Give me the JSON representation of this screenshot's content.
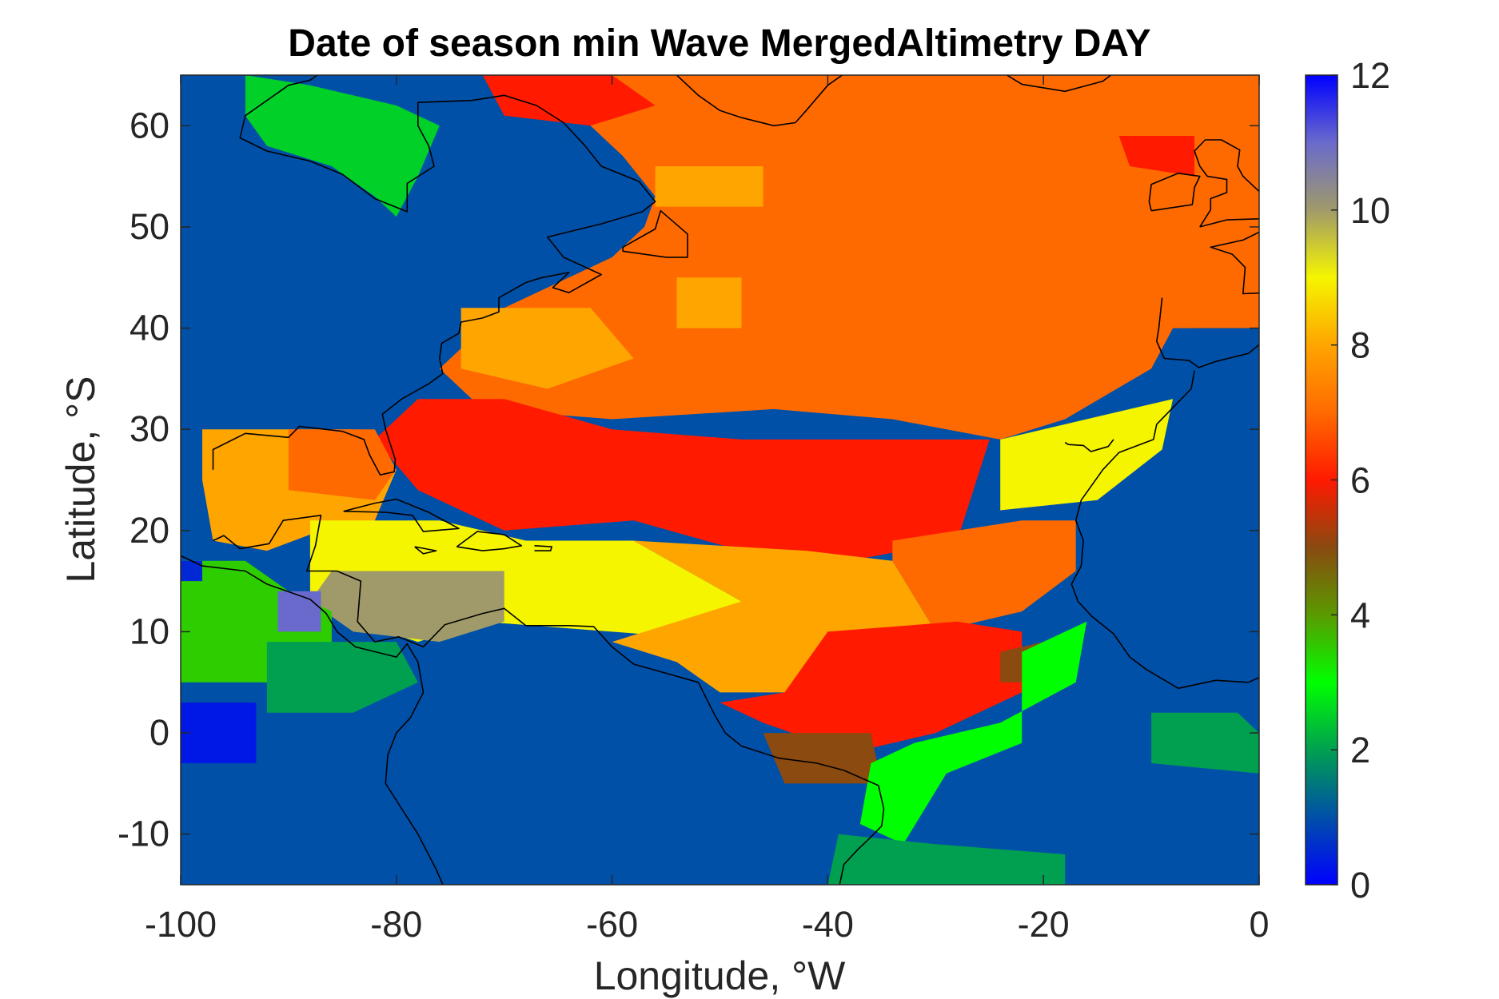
{
  "chart_data": {
    "type": "heatmap",
    "title": "Date of season min Wave MergedAltimetry DAY",
    "xlabel": "Longitude, °W",
    "ylabel": "Latitude, °S",
    "xlim": [
      -100,
      0
    ],
    "ylim": [
      -15,
      65
    ],
    "x_ticks": [
      -100,
      -80,
      -60,
      -40,
      -20,
      0
    ],
    "y_ticks": [
      -10,
      0,
      10,
      20,
      30,
      40,
      50,
      60
    ],
    "x_tick_labels": [
      "-100",
      "-80",
      "-60",
      "-40",
      "-20",
      "0"
    ],
    "y_tick_labels": [
      "-10",
      "0",
      "10",
      "20",
      "30",
      "40",
      "50",
      "60"
    ],
    "colorbar": {
      "range": [
        0,
        12
      ],
      "ticks": [
        0,
        2,
        4,
        6,
        8,
        10,
        12
      ],
      "tick_labels": [
        "0",
        "2",
        "4",
        "6",
        "8",
        "10",
        "12"
      ],
      "colormap": [
        "#0000ff",
        "#0050a8",
        "#00a050",
        "#00ff00",
        "#5a9a00",
        "#8a4a10",
        "#ff1a00",
        "#ff6a00",
        "#ffa500",
        "#f5f500",
        "#a09a6a",
        "#6a6acc",
        "#0000ff"
      ]
    },
    "grid": false,
    "regions": [
      {
        "name": "background_ocean",
        "value": 1,
        "polygon": [
          [
            -100,
            -15
          ],
          [
            0,
            -15
          ],
          [
            0,
            65
          ],
          [
            -100,
            65
          ]
        ]
      },
      {
        "name": "north_atlantic_main",
        "value": 7,
        "polygon": [
          [
            -66,
            65
          ],
          [
            -52,
            65
          ],
          [
            0,
            65
          ],
          [
            0,
            40
          ],
          [
            -8,
            40
          ],
          [
            -10,
            36
          ],
          [
            -18,
            31
          ],
          [
            -24,
            29
          ],
          [
            -34,
            31
          ],
          [
            -45,
            32
          ],
          [
            -60,
            31
          ],
          [
            -72,
            32
          ],
          [
            -76,
            36
          ],
          [
            -70,
            42
          ],
          [
            -64,
            45
          ],
          [
            -60,
            47
          ],
          [
            -57,
            50
          ],
          [
            -56,
            53
          ],
          [
            -59,
            57
          ],
          [
            -62,
            60
          ]
        ]
      },
      {
        "name": "north_atlantic_east_edge_gap",
        "value": 1,
        "polygon": [
          [
            -6,
            40
          ],
          [
            0,
            40
          ],
          [
            0,
            31
          ],
          [
            -6,
            36
          ]
        ]
      },
      {
        "name": "mid_atlantic_red_band",
        "value": 6,
        "polygon": [
          [
            -78,
            33
          ],
          [
            -70,
            33
          ],
          [
            -60,
            30
          ],
          [
            -48,
            29
          ],
          [
            -38,
            29
          ],
          [
            -25,
            29
          ],
          [
            -28,
            19
          ],
          [
            -38,
            17
          ],
          [
            -48,
            18
          ],
          [
            -58,
            21
          ],
          [
            -70,
            20
          ],
          [
            -78,
            24
          ],
          [
            -82,
            29
          ]
        ]
      },
      {
        "name": "gulf_of_mexico",
        "value": 8,
        "polygon": [
          [
            -98,
            30
          ],
          [
            -84,
            30
          ],
          [
            -80,
            26
          ],
          [
            -82,
            21
          ],
          [
            -87,
            20
          ],
          [
            -92,
            18
          ],
          [
            -97,
            19
          ],
          [
            -98,
            25
          ]
        ]
      },
      {
        "name": "gulf_north_rim",
        "value": 7,
        "polygon": [
          [
            -90,
            30
          ],
          [
            -82,
            30
          ],
          [
            -80,
            26
          ],
          [
            -82,
            23
          ],
          [
            -90,
            24
          ]
        ]
      },
      {
        "name": "caribbean_yellow",
        "value": 9,
        "polygon": [
          [
            -88,
            21
          ],
          [
            -76,
            21
          ],
          [
            -68,
            19
          ],
          [
            -58,
            19
          ],
          [
            -48,
            13
          ],
          [
            -48,
            9
          ],
          [
            -60,
            10
          ],
          [
            -72,
            11
          ],
          [
            -78,
            9
          ],
          [
            -84,
            11
          ],
          [
            -88,
            14
          ]
        ]
      },
      {
        "name": "central_america_olive",
        "value": 10,
        "polygon": [
          [
            -86,
            16
          ],
          [
            -70,
            16
          ],
          [
            -70,
            11
          ],
          [
            -76,
            9
          ],
          [
            -84,
            10
          ],
          [
            -88,
            13
          ]
        ]
      },
      {
        "name": "tropical_orange",
        "value": 8,
        "polygon": [
          [
            -58,
            19
          ],
          [
            -42,
            18
          ],
          [
            -34,
            17
          ],
          [
            -30,
            10
          ],
          [
            -36,
            6
          ],
          [
            -44,
            4
          ],
          [
            -50,
            4
          ],
          [
            -54,
            7
          ],
          [
            -60,
            9
          ],
          [
            -48,
            13
          ]
        ]
      },
      {
        "name": "east_tropical_orange",
        "value": 7,
        "polygon": [
          [
            -34,
            19
          ],
          [
            -22,
            21
          ],
          [
            -17,
            21
          ],
          [
            -17,
            16
          ],
          [
            -22,
            12
          ],
          [
            -30,
            10
          ],
          [
            -34,
            17
          ]
        ]
      },
      {
        "name": "east_yellow_patch",
        "value": 9,
        "polygon": [
          [
            -24,
            29
          ],
          [
            -16,
            31
          ],
          [
            -8,
            33
          ],
          [
            -9,
            28
          ],
          [
            -15,
            23
          ],
          [
            -24,
            22
          ]
        ]
      },
      {
        "name": "equatorial_red",
        "value": 6,
        "polygon": [
          [
            -40,
            10
          ],
          [
            -28,
            11
          ],
          [
            -22,
            10
          ],
          [
            -22,
            4
          ],
          [
            -30,
            0
          ],
          [
            -38,
            -2
          ],
          [
            -46,
            1
          ],
          [
            -50,
            3
          ],
          [
            -44,
            4
          ]
        ]
      },
      {
        "name": "guinea_brown",
        "value": 5,
        "polygon": [
          [
            -24,
            8
          ],
          [
            -20,
            9
          ],
          [
            -20,
            5
          ],
          [
            -24,
            5
          ]
        ]
      },
      {
        "name": "brazil_brown",
        "value": 5,
        "polygon": [
          [
            -46,
            0
          ],
          [
            -36,
            0
          ],
          [
            -35,
            -5
          ],
          [
            -44,
            -5
          ]
        ]
      },
      {
        "name": "africa_green_strip",
        "value": 3,
        "polygon": [
          [
            -22,
            8
          ],
          [
            -16,
            11
          ],
          [
            -17,
            5
          ],
          [
            -24,
            1
          ],
          [
            -32,
            -1
          ],
          [
            -36,
            -3
          ],
          [
            -37,
            -9
          ],
          [
            -33,
            -11
          ],
          [
            -29,
            -4
          ],
          [
            -22,
            -1
          ]
        ]
      },
      {
        "name": "south_green_strip",
        "value": 2,
        "polygon": [
          [
            -39,
            -10
          ],
          [
            -30,
            -11
          ],
          [
            -18,
            -12
          ],
          [
            -18,
            -15
          ],
          [
            -40,
            -15
          ]
        ]
      },
      {
        "name": "pacific_green",
        "value": 3.5,
        "polygon": [
          [
            -100,
            17
          ],
          [
            -94,
            17
          ],
          [
            -90,
            14
          ],
          [
            -86,
            12
          ],
          [
            -86,
            7
          ],
          [
            -92,
            5
          ],
          [
            -100,
            5
          ]
        ]
      },
      {
        "name": "pacific_green_south",
        "value": 2,
        "polygon": [
          [
            -92,
            9
          ],
          [
            -80,
            9
          ],
          [
            -78,
            5
          ],
          [
            -84,
            2
          ],
          [
            -92,
            2
          ]
        ]
      },
      {
        "name": "pacific_blue_patch",
        "value": 0.3,
        "polygon": [
          [
            -100,
            3
          ],
          [
            -93,
            3
          ],
          [
            -93,
            -3
          ],
          [
            -100,
            -3
          ]
        ]
      },
      {
        "name": "pacific_blue_small",
        "value": 0.5,
        "polygon": [
          [
            -100,
            17
          ],
          [
            -98,
            17
          ],
          [
            -98,
            15
          ],
          [
            -100,
            15
          ]
        ]
      },
      {
        "name": "pacific_purple_small",
        "value": 11,
        "polygon": [
          [
            -91,
            14
          ],
          [
            -87,
            14
          ],
          [
            -87,
            10
          ],
          [
            -91,
            10
          ]
        ]
      },
      {
        "name": "hudson_bay_green",
        "value": 2.5,
        "polygon": [
          [
            -94,
            65
          ],
          [
            -88,
            64
          ],
          [
            -80,
            62
          ],
          [
            -76,
            60
          ],
          [
            -78,
            55
          ],
          [
            -80,
            51
          ],
          [
            -82,
            53
          ],
          [
            -86,
            56
          ],
          [
            -92,
            58
          ],
          [
            -94,
            61
          ]
        ]
      },
      {
        "name": "labrador_red",
        "value": 6,
        "polygon": [
          [
            -72,
            65
          ],
          [
            -60,
            65
          ],
          [
            -56,
            62
          ],
          [
            -62,
            60
          ],
          [
            -70,
            61
          ]
        ]
      },
      {
        "name": "europe_red_patch",
        "value": 6,
        "polygon": [
          [
            -13,
            59
          ],
          [
            -6,
            59
          ],
          [
            -6,
            55
          ],
          [
            -12,
            56
          ]
        ]
      },
      {
        "name": "mid_orange_patch_1",
        "value": 8,
        "polygon": [
          [
            -56,
            56
          ],
          [
            -46,
            56
          ],
          [
            -46,
            52
          ],
          [
            -56,
            52
          ]
        ]
      },
      {
        "name": "mid_orange_patch_2",
        "value": 8,
        "polygon": [
          [
            -54,
            45
          ],
          [
            -48,
            45
          ],
          [
            -48,
            40
          ],
          [
            -54,
            40
          ]
        ]
      },
      {
        "name": "southwest_orange_patch",
        "value": 8,
        "polygon": [
          [
            -74,
            42
          ],
          [
            -62,
            42
          ],
          [
            -58,
            37
          ],
          [
            -66,
            34
          ],
          [
            -74,
            36
          ]
        ]
      },
      {
        "name": "gulf_of_guinea_green",
        "value": 2,
        "polygon": [
          [
            -10,
            2
          ],
          [
            -2,
            2
          ],
          [
            0,
            0
          ],
          [
            0,
            -4
          ],
          [
            -10,
            -3
          ]
        ]
      }
    ]
  }
}
